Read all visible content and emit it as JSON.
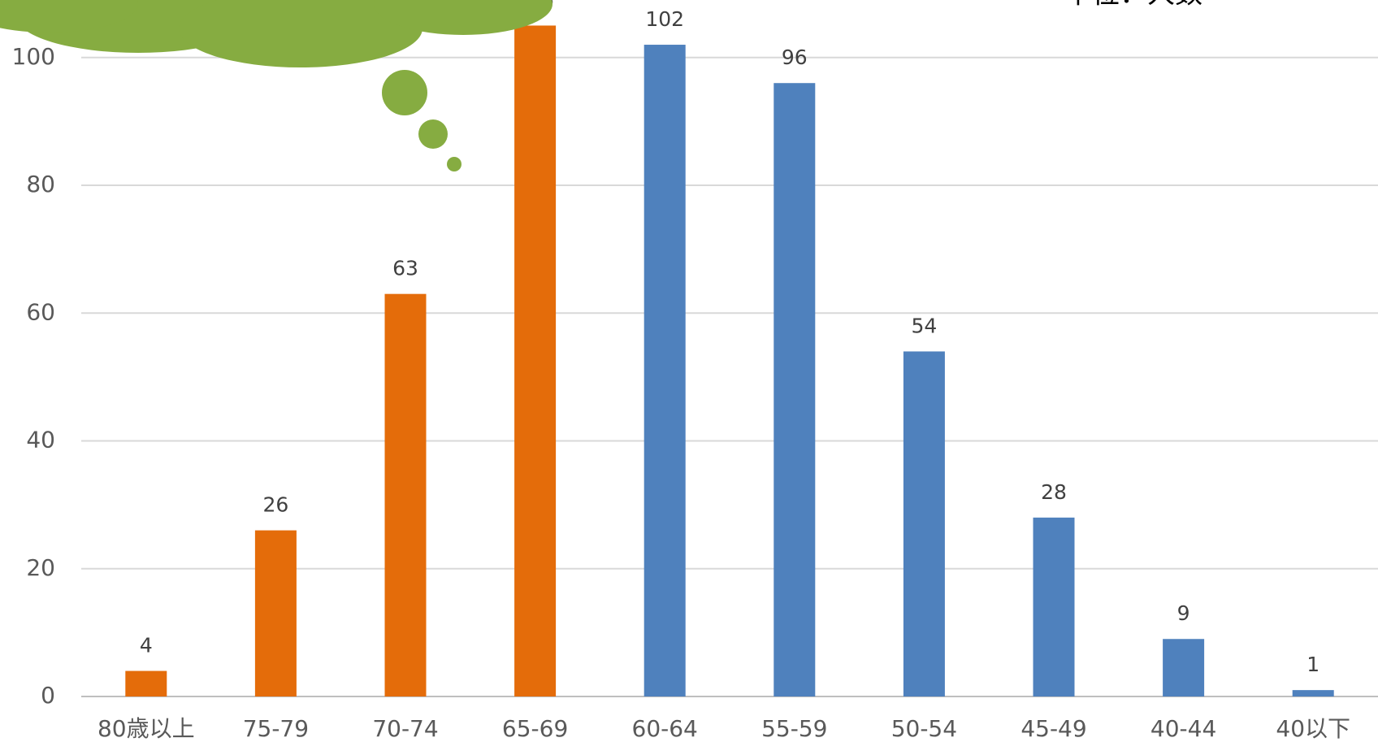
{
  "chart_data": {
    "type": "bar",
    "unit_label": "単位：人数",
    "categories": [
      "80歳以上",
      "75-79",
      "70-74",
      "65-69",
      "60-64",
      "55-59",
      "50-54",
      "45-49",
      "40-44",
      "40以下"
    ],
    "values": [
      4,
      26,
      63,
      105,
      102,
      96,
      54,
      28,
      9,
      1
    ],
    "colors": [
      "#E46C0A",
      "#E46C0A",
      "#E46C0A",
      "#E46C0A",
      "#4F81BD",
      "#4F81BD",
      "#4F81BD",
      "#4F81BD",
      "#4F81BD",
      "#4F81BD"
    ],
    "ylim": [
      0,
      109
    ],
    "yticks": [
      0,
      20,
      40,
      60,
      80,
      100
    ],
    "grid": true
  }
}
